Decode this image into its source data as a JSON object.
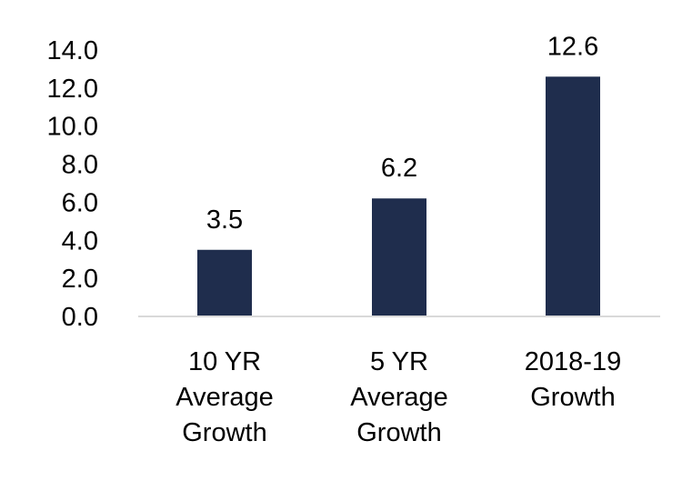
{
  "chart_data": {
    "type": "bar",
    "categories": [
      [
        "10 YR",
        "Average",
        "Growth"
      ],
      [
        "5 YR",
        "Average",
        "Growth"
      ],
      [
        "2018-19",
        "Growth"
      ]
    ],
    "values": [
      3.5,
      6.2,
      12.6
    ],
    "value_labels": [
      "3.5",
      "6.2",
      "12.6"
    ],
    "y_ticks": [
      "0.0",
      "2.0",
      "4.0",
      "6.0",
      "8.0",
      "10.0",
      "12.0",
      "14.0"
    ],
    "ylim": [
      0,
      14
    ],
    "grid": false,
    "legend": "none",
    "bar_color": "#1f2d4d",
    "axis_color": "#d9d9d9"
  }
}
